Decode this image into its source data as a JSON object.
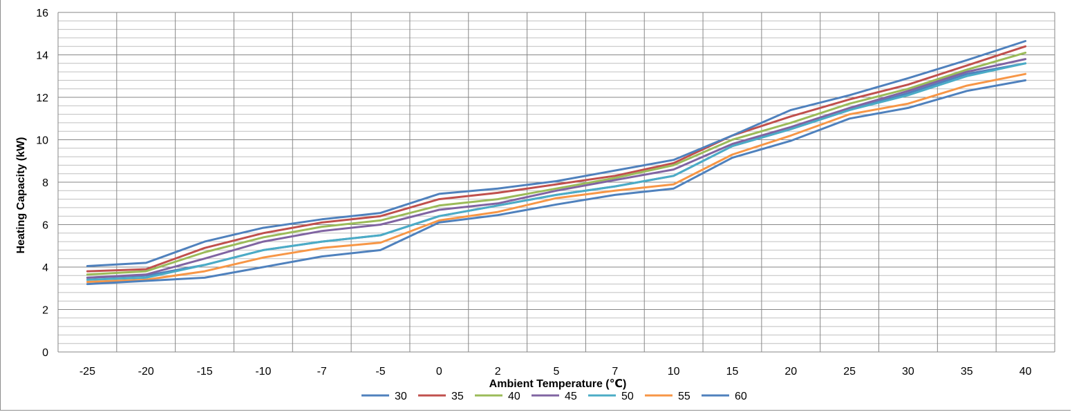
{
  "chart_data": {
    "type": "line",
    "title": "",
    "xlabel": "Ambient Temperature (℃)",
    "ylabel": "Heating Capacity (kW)",
    "ylim": [
      0,
      16
    ],
    "y_major_ticks": [
      "0",
      "2",
      "4",
      "6",
      "8",
      "10",
      "12",
      "14",
      "16"
    ],
    "y_minor_step": 0.4,
    "categories": [
      "-25",
      "-20",
      "-15",
      "-10",
      "-7",
      "-5",
      "0",
      "2",
      "5",
      "7",
      "10",
      "15",
      "20",
      "25",
      "30",
      "35",
      "40"
    ],
    "grid": true,
    "legend_position": "bottom",
    "series": [
      {
        "name": "30",
        "color": "#4f81bd",
        "values": [
          3.5,
          3.6,
          4.1,
          4.8,
          5.2,
          5.5,
          6.4,
          6.9,
          7.4,
          7.8,
          8.3,
          9.7,
          10.5,
          11.4,
          12.2,
          13.1,
          13.6
        ]
      },
      {
        "name": "35",
        "color": "#c0504d",
        "values": [
          3.8,
          3.9,
          4.9,
          5.6,
          6.1,
          6.4,
          7.2,
          7.5,
          7.9,
          8.3,
          8.9,
          10.2,
          11.1,
          11.9,
          12.6,
          13.5,
          14.4
        ]
      },
      {
        "name": "40",
        "color": "#9bbb59",
        "values": [
          3.65,
          3.8,
          4.7,
          5.4,
          5.9,
          6.2,
          6.9,
          7.2,
          7.7,
          8.2,
          8.8,
          10.0,
          10.8,
          11.7,
          12.4,
          13.3,
          14.1
        ]
      },
      {
        "name": "45",
        "color": "#8064a2",
        "values": [
          3.5,
          3.65,
          4.4,
          5.2,
          5.7,
          6.0,
          6.7,
          7.0,
          7.6,
          8.1,
          8.6,
          9.8,
          10.6,
          11.5,
          12.3,
          13.2,
          13.8
        ]
      },
      {
        "name": "50",
        "color": "#4bacc6",
        "values": [
          3.4,
          3.5,
          4.1,
          4.8,
          5.2,
          5.5,
          6.4,
          6.9,
          7.4,
          7.8,
          8.3,
          9.7,
          10.5,
          11.4,
          12.1,
          13.0,
          13.6
        ]
      },
      {
        "name": "55",
        "color": "#f79646",
        "values": [
          3.3,
          3.4,
          3.8,
          4.45,
          4.9,
          5.15,
          6.2,
          6.6,
          7.25,
          7.6,
          7.9,
          9.3,
          10.2,
          11.2,
          11.7,
          12.55,
          13.1
        ]
      },
      {
        "name": "60",
        "color": "#4f81bd",
        "values": [
          3.2,
          3.35,
          3.5,
          4.0,
          4.5,
          4.8,
          6.1,
          6.45,
          6.95,
          7.4,
          7.7,
          9.15,
          9.95,
          11.0,
          11.5,
          12.3,
          12.8
        ]
      },
      {
        "name": "",
        "color": "#4f81bd",
        "values": [
          4.05,
          4.2,
          5.2,
          5.85,
          6.25,
          6.55,
          7.45,
          7.7,
          8.05,
          8.55,
          9.05,
          10.2,
          11.4,
          12.1,
          12.9,
          13.75,
          14.65
        ]
      }
    ]
  }
}
